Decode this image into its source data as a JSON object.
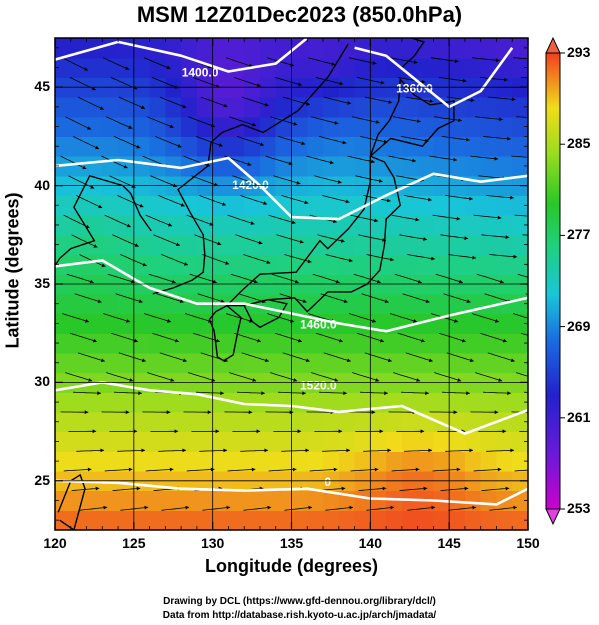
{
  "title": "MSM 12Z01Dec2023 (850.0hPa)",
  "x_axis": {
    "label": "Longitude (degrees)",
    "range": [
      120,
      150
    ],
    "ticks": [
      "120",
      "125",
      "130",
      "135",
      "140",
      "145",
      "150"
    ]
  },
  "y_axis": {
    "label": "Latitude  (degrees)",
    "range": [
      22.5,
      47.5
    ],
    "ticks": [
      "25",
      "30",
      "35",
      "40",
      "45"
    ]
  },
  "colorbar": {
    "range": [
      253,
      293
    ],
    "ticks": [
      "293",
      "285",
      "277",
      "269",
      "261",
      "253"
    ]
  },
  "contour_labels": [
    {
      "text": "1400.0",
      "lon": 129.2,
      "lat": 45.7
    },
    {
      "text": "1360.0",
      "lon": 142.8,
      "lat": 44.9
    },
    {
      "text": "1420.0",
      "lon": 132.4,
      "lat": 40.0
    },
    {
      "text": "1460.0",
      "lon": 136.7,
      "lat": 32.9
    },
    {
      "text": "1520.0",
      "lon": 136.7,
      "lat": 29.8
    },
    {
      "text": "0",
      "lon": 137.3,
      "lat": 24.9
    }
  ],
  "credits": {
    "line1": "Drawing by DCL (https://www.gfd-dennou.org/library/dcl/)",
    "line2": "Data from http://database.rish.kyoto-u.ac.jp/arch/jmadata/"
  }
}
